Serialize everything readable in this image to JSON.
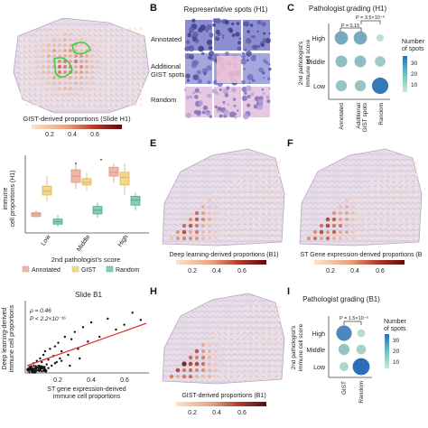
{
  "panels": {
    "A": {
      "letter": "",
      "colorbar_label": "GIST-derived proportions (Slide H1)",
      "ticks": [
        "0.2",
        "0.4",
        "0.6"
      ]
    },
    "B": {
      "letter": "B",
      "title": "Representative spots (H1)",
      "rows": [
        "Annotated",
        "Additional\nGIST spots",
        "Random"
      ]
    },
    "C": {
      "letter": "C",
      "title": "Pathologist grading (H1)",
      "ylabel": "2nd pathologist's\nimmune cell score",
      "pvals": [
        "P = 0.15",
        "P = 3.5×10⁻⁶"
      ],
      "legend_title": "Number\nof spots",
      "legend_ticks": [
        "30",
        "20",
        "10"
      ]
    },
    "D": {
      "letter": "",
      "ylabel": "immune\ncell proportions (H1)",
      "xlabel": "2nd pathologist's score",
      "legend_items": [
        "Annotated",
        "GIST",
        "Random"
      ]
    },
    "E": {
      "letter": "E",
      "colorbar_label": "Deep learning-derived proportions (B1)",
      "ticks": [
        "0.2",
        "0.4",
        "0.6"
      ]
    },
    "F": {
      "letter": "F",
      "colorbar_label": "ST Gene expression-derived proportions (B",
      "ticks": [
        "0.2",
        "0.4",
        "0.6"
      ]
    },
    "G": {
      "letter": "",
      "title": "Slide B1",
      "stats": [
        "ρ = 0.46",
        "P < 2.2×10⁻¹⁶"
      ],
      "ylabel": "Deep learning-derived\nimmune cell proportions",
      "xlabel": "ST gene expression-derived\nimmune cell proportions",
      "xticks": [
        "0.2",
        "0.4",
        "0.6"
      ]
    },
    "H": {
      "letter": "H",
      "colorbar_label": "GIST-derived proportions (B1)",
      "ticks": [
        "0.2",
        "0.4",
        "0.6"
      ]
    },
    "I": {
      "letter": "I",
      "title": "Pathologist grading (B1)",
      "ylabel": "2nd pathologist's\nimmune cell score",
      "pval": "P = 1.5×10⁻⁶",
      "legend_title": "Number\nof spots",
      "legend_ticks": [
        "30",
        "20",
        "10"
      ]
    }
  },
  "colors": {
    "annotated": "#f2b8a6",
    "gist": "#f2d98a",
    "random": "#7fcfb8",
    "spot_dark": "#8b1a1a",
    "scale_low": "#fbe3cf",
    "scale_high": "#6b0a0a",
    "bubble_low": "#c8ebc9",
    "bubble_high": "#2a85c6"
  },
  "chart_data": [
    {
      "type": "bubble",
      "title": "Pathologist grading (H1)",
      "categories": [
        "Annotated",
        "Additional GIST spots",
        "Random"
      ],
      "y_categories": [
        "Low",
        "Middle",
        "High"
      ],
      "points": [
        {
          "x": "Annotated",
          "y": "High",
          "n": 20
        },
        {
          "x": "Additional GIST spots",
          "y": "High",
          "n": 20
        },
        {
          "x": "Random",
          "y": "High",
          "n": 3
        },
        {
          "x": "Annotated",
          "y": "Middle",
          "n": 14
        },
        {
          "x": "Additional GIST spots",
          "y": "Middle",
          "n": 14
        },
        {
          "x": "Random",
          "y": "Middle",
          "n": 10
        },
        {
          "x": "Annotated",
          "y": "Low",
          "n": 12
        },
        {
          "x": "Additional GIST spots",
          "y": "Low",
          "n": 12
        },
        {
          "x": "Random",
          "y": "Low",
          "n": 35
        }
      ]
    },
    {
      "type": "box",
      "xlabel": "2nd pathologist's score",
      "categories": [
        "Low",
        "Middle",
        "High"
      ],
      "series": [
        {
          "name": "Annotated",
          "boxes": [
            [
              0.12,
              0.13,
              0.15,
              0.16,
              0.18
            ],
            [
              0.35,
              0.4,
              0.45,
              0.5,
              0.55
            ],
            [
              0.4,
              0.45,
              0.48,
              0.52,
              0.55
            ]
          ]
        },
        {
          "name": "GIST",
          "boxes": [
            [
              0.25,
              0.3,
              0.33,
              0.37,
              0.45
            ],
            [
              0.33,
              0.38,
              0.4,
              0.43,
              0.48
            ],
            [
              0.3,
              0.38,
              0.44,
              0.48,
              0.55
            ]
          ]
        },
        {
          "name": "Random",
          "boxes": [
            [
              0.05,
              0.07,
              0.09,
              0.11,
              0.14
            ],
            [
              0.12,
              0.15,
              0.18,
              0.21,
              0.24
            ],
            [
              0.18,
              0.22,
              0.26,
              0.29,
              0.32
            ]
          ]
        }
      ]
    },
    {
      "type": "scatter",
      "title": "Slide B1",
      "xlabel": "ST gene expression-derived immune cell proportions",
      "ylabel": "Deep learning-derived immune cell proportions",
      "xlim": [
        0,
        0.75
      ],
      "ylim": [
        0,
        0.6
      ],
      "x": [
        0.02,
        0.03,
        0.04,
        0.05,
        0.05,
        0.06,
        0.07,
        0.08,
        0.08,
        0.09,
        0.1,
        0.1,
        0.11,
        0.12,
        0.12,
        0.13,
        0.14,
        0.15,
        0.16,
        0.17,
        0.18,
        0.19,
        0.2,
        0.21,
        0.22,
        0.24,
        0.26,
        0.28,
        0.3,
        0.32,
        0.35,
        0.38,
        0.4,
        0.45,
        0.5,
        0.55,
        0.6,
        0.65,
        0.7,
        0.04,
        0.06,
        0.09,
        0.11,
        0.14,
        0.18,
        0.22,
        0.27,
        0.33
      ],
      "y": [
        0.02,
        0.05,
        0.03,
        0.08,
        0.01,
        0.04,
        0.1,
        0.06,
        0.02,
        0.12,
        0.05,
        0.09,
        0.15,
        0.03,
        0.18,
        0.07,
        0.11,
        0.2,
        0.06,
        0.14,
        0.22,
        0.09,
        0.25,
        0.12,
        0.18,
        0.3,
        0.15,
        0.28,
        0.34,
        0.2,
        0.38,
        0.26,
        0.42,
        0.3,
        0.45,
        0.36,
        0.4,
        0.5,
        0.44,
        0.01,
        0.02,
        0.03,
        0.02,
        0.04,
        0.08,
        0.1,
        0.06,
        0.12
      ]
    },
    {
      "type": "bubble",
      "title": "Pathologist grading (B1)",
      "categories": [
        "GIST",
        "Random"
      ],
      "y_categories": [
        "Low",
        "Middle",
        "High"
      ],
      "points": [
        {
          "x": "GIST",
          "y": "High",
          "n": 30
        },
        {
          "x": "Random",
          "y": "High",
          "n": 4
        },
        {
          "x": "GIST",
          "y": "Middle",
          "n": 12
        },
        {
          "x": "Random",
          "y": "Middle",
          "n": 8
        },
        {
          "x": "GIST",
          "y": "Low",
          "n": 6
        },
        {
          "x": "Random",
          "y": "Low",
          "n": 38
        }
      ]
    }
  ]
}
